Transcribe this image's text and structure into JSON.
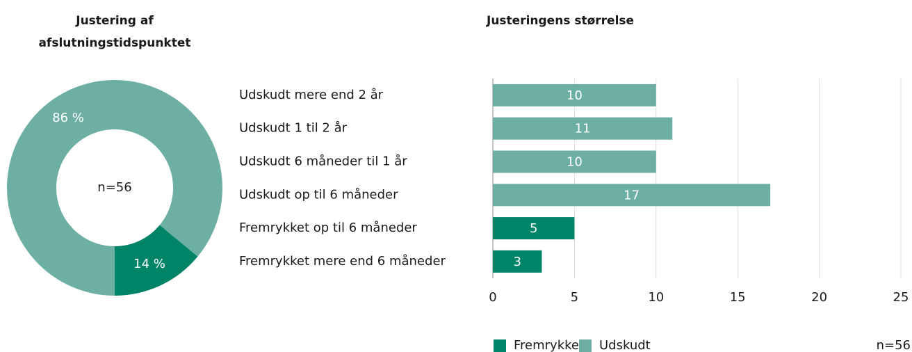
{
  "chart_data": [
    {
      "type": "donut",
      "title": "Justering af afslutningstidspunktet",
      "categories": [
        "Udskudt",
        "Fremrykket"
      ],
      "values": [
        86,
        14
      ],
      "value_labels": [
        "86 %",
        "14 %"
      ],
      "colors": [
        "#6db0a3",
        "#008467"
      ],
      "center_label": "n=56"
    },
    {
      "type": "hbar",
      "title": "Justeringens størrelse",
      "categories": [
        "Udskudt mere end 2 år",
        "Udskudt 1 til 2 år",
        "Udskudt 6 måneder til 1 år",
        "Udskudt op til 6 måneder",
        "Fremrykket op til 6 måneder",
        "Fremrykket mere end 6 måneder"
      ],
      "series": [
        {
          "name": "Fremrykket",
          "color": "#008467",
          "values": [
            null,
            null,
            null,
            null,
            5,
            3
          ]
        },
        {
          "name": "Udskudt",
          "color": "#6db0a3",
          "values": [
            10,
            11,
            10,
            17,
            null,
            null
          ]
        }
      ],
      "xlim": [
        0,
        25
      ],
      "xticks": [
        0,
        5,
        10,
        15,
        20,
        25
      ],
      "grid": true,
      "note": "n=56"
    }
  ]
}
